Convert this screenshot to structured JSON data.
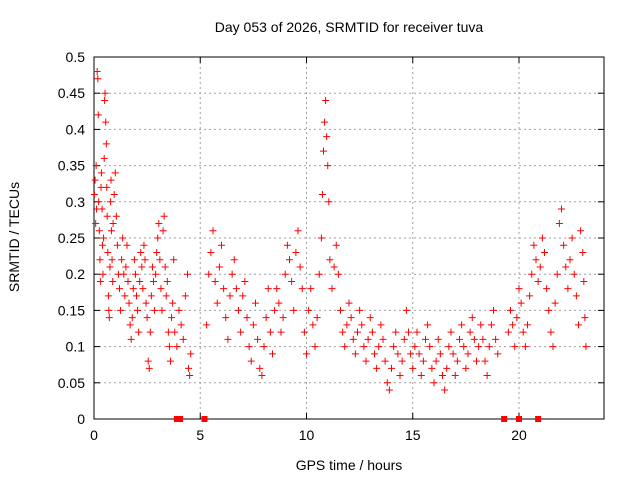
{
  "chart_data": {
    "type": "scatter",
    "title": "Day 053 of 2026, SRMTID for receiver tuva",
    "xlabel": "GPS time / hours",
    "ylabel": "SRMTID / TECUs",
    "xlim": [
      0,
      24
    ],
    "ylim": [
      0,
      0.5
    ],
    "xticks": [
      0,
      5,
      10,
      15,
      20
    ],
    "yticks": [
      0,
      0.05,
      0.1,
      0.15,
      0.2,
      0.25,
      0.3,
      0.35,
      0.4,
      0.45,
      0.5
    ],
    "grid": true,
    "marker": "+",
    "color": "#ff0000",
    "series": [
      {
        "points": [
          [
            0.02,
            0.31
          ],
          [
            0.05,
            0.33
          ],
          [
            0.08,
            0.27
          ],
          [
            0.1,
            0.35
          ],
          [
            0.12,
            0.29
          ],
          [
            0.15,
            0.48
          ],
          [
            0.18,
            0.47
          ],
          [
            0.2,
            0.42
          ],
          [
            0.22,
            0.3
          ],
          [
            0.25,
            0.26
          ],
          [
            0.28,
            0.22
          ],
          [
            0.3,
            0.19
          ],
          [
            0.33,
            0.32
          ],
          [
            0.35,
            0.34
          ],
          [
            0.38,
            0.29
          ],
          [
            0.4,
            0.24
          ],
          [
            0.42,
            0.2
          ],
          [
            0.45,
            0.25
          ],
          [
            0.48,
            0.36
          ],
          [
            0.5,
            0.44
          ],
          [
            0.52,
            0.45
          ],
          [
            0.55,
            0.41
          ],
          [
            0.58,
            0.38
          ],
          [
            0.6,
            0.32
          ],
          [
            0.62,
            0.28
          ],
          [
            0.65,
            0.23
          ],
          [
            0.68,
            0.17
          ],
          [
            0.7,
            0.15
          ],
          [
            0.72,
            0.14
          ],
          [
            0.75,
            0.21
          ],
          [
            0.78,
            0.3
          ],
          [
            0.8,
            0.33
          ],
          [
            0.82,
            0.26
          ],
          [
            0.85,
            0.22
          ],
          [
            0.88,
            0.19
          ],
          [
            0.9,
            0.27
          ],
          [
            0.95,
            0.31
          ],
          [
            1.0,
            0.34
          ],
          [
            1.05,
            0.28
          ],
          [
            1.1,
            0.24
          ],
          [
            1.15,
            0.2
          ],
          [
            1.2,
            0.18
          ],
          [
            1.25,
            0.15
          ],
          [
            1.3,
            0.22
          ],
          [
            1.35,
            0.25
          ],
          [
            1.4,
            0.2
          ],
          [
            1.45,
            0.17
          ],
          [
            1.5,
            0.21
          ],
          [
            1.55,
            0.24
          ],
          [
            1.6,
            0.19
          ],
          [
            1.65,
            0.16
          ],
          [
            1.7,
            0.13
          ],
          [
            1.75,
            0.11
          ],
          [
            1.8,
            0.14
          ],
          [
            1.85,
            0.18
          ],
          [
            1.9,
            0.22
          ],
          [
            1.95,
            0.2
          ],
          [
            2.0,
            0.17
          ],
          [
            2.05,
            0.15
          ],
          [
            2.1,
            0.12
          ],
          [
            2.15,
            0.19
          ],
          [
            2.2,
            0.23
          ],
          [
            2.25,
            0.21
          ],
          [
            2.3,
            0.18
          ],
          [
            2.35,
            0.24
          ],
          [
            2.4,
            0.22
          ],
          [
            2.45,
            0.16
          ],
          [
            2.5,
            0.14
          ],
          [
            2.55,
            0.08
          ],
          [
            2.6,
            0.07
          ],
          [
            2.65,
            0.12
          ],
          [
            2.7,
            0.17
          ],
          [
            2.75,
            0.21
          ],
          [
            2.8,
            0.19
          ],
          [
            2.85,
            0.15
          ],
          [
            2.9,
            0.2
          ],
          [
            2.95,
            0.23
          ],
          [
            3.0,
            0.25
          ],
          [
            3.05,
            0.27
          ],
          [
            3.1,
            0.22
          ],
          [
            3.15,
            0.18
          ],
          [
            3.2,
            0.15
          ],
          [
            3.25,
            0.26
          ],
          [
            3.3,
            0.28
          ],
          [
            3.35,
            0.21
          ],
          [
            3.4,
            0.17
          ],
          [
            3.45,
            0.19
          ],
          [
            3.5,
            0.12
          ],
          [
            3.55,
            0.1
          ],
          [
            3.6,
            0.08
          ],
          [
            3.65,
            0.14
          ],
          [
            3.7,
            0.16
          ],
          [
            3.75,
            0.22
          ],
          [
            3.8,
            0.12
          ],
          [
            3.9,
            0.1
          ],
          [
            4.0,
            0.15
          ],
          [
            4.1,
            0.13
          ],
          [
            4.2,
            0.11
          ],
          [
            4.3,
            0.17
          ],
          [
            4.4,
            0.2
          ],
          [
            4.45,
            0.07
          ],
          [
            4.5,
            0.06
          ],
          [
            4.55,
            0.09
          ],
          [
            5.3,
            0.13
          ],
          [
            5.4,
            0.2
          ],
          [
            5.5,
            0.23
          ],
          [
            5.6,
            0.26
          ],
          [
            5.7,
            0.19
          ],
          [
            5.8,
            0.16
          ],
          [
            5.9,
            0.21
          ],
          [
            6.0,
            0.24
          ],
          [
            6.1,
            0.18
          ],
          [
            6.2,
            0.14
          ],
          [
            6.3,
            0.11
          ],
          [
            6.4,
            0.17
          ],
          [
            6.5,
            0.2
          ],
          [
            6.6,
            0.22
          ],
          [
            6.7,
            0.18
          ],
          [
            6.8,
            0.15
          ],
          [
            6.9,
            0.12
          ],
          [
            7.0,
            0.17
          ],
          [
            7.1,
            0.19
          ],
          [
            7.2,
            0.14
          ],
          [
            7.3,
            0.1
          ],
          [
            7.4,
            0.08
          ],
          [
            7.5,
            0.13
          ],
          [
            7.6,
            0.16
          ],
          [
            7.7,
            0.11
          ],
          [
            7.8,
            0.07
          ],
          [
            7.9,
            0.06
          ],
          [
            8.0,
            0.1
          ],
          [
            8.1,
            0.14
          ],
          [
            8.2,
            0.18
          ],
          [
            8.3,
            0.12
          ],
          [
            8.4,
            0.09
          ],
          [
            8.5,
            0.15
          ],
          [
            8.6,
            0.18
          ],
          [
            8.7,
            0.16
          ],
          [
            8.8,
            0.12
          ],
          [
            8.9,
            0.14
          ],
          [
            9.0,
            0.2
          ],
          [
            9.1,
            0.24
          ],
          [
            9.2,
            0.22
          ],
          [
            9.3,
            0.19
          ],
          [
            9.4,
            0.15
          ],
          [
            9.5,
            0.23
          ],
          [
            9.6,
            0.26
          ],
          [
            9.7,
            0.21
          ],
          [
            9.8,
            0.18
          ],
          [
            9.9,
            0.12
          ],
          [
            10.0,
            0.09
          ],
          [
            10.1,
            0.15
          ],
          [
            10.2,
            0.18
          ],
          [
            10.3,
            0.13
          ],
          [
            10.4,
            0.1
          ],
          [
            10.5,
            0.14
          ],
          [
            10.6,
            0.2
          ],
          [
            10.7,
            0.25
          ],
          [
            10.75,
            0.31
          ],
          [
            10.8,
            0.37
          ],
          [
            10.85,
            0.41
          ],
          [
            10.9,
            0.44
          ],
          [
            10.95,
            0.39
          ],
          [
            11.0,
            0.35
          ],
          [
            11.05,
            0.3
          ],
          [
            11.1,
            0.22
          ],
          [
            11.2,
            0.18
          ],
          [
            11.3,
            0.21
          ],
          [
            11.4,
            0.24
          ],
          [
            11.5,
            0.2
          ],
          [
            11.6,
            0.15
          ],
          [
            11.7,
            0.12
          ],
          [
            11.8,
            0.1
          ],
          [
            11.9,
            0.13
          ],
          [
            12.0,
            0.16
          ],
          [
            12.1,
            0.14
          ],
          [
            12.2,
            0.11
          ],
          [
            12.3,
            0.09
          ],
          [
            12.4,
            0.12
          ],
          [
            12.5,
            0.15
          ],
          [
            12.6,
            0.13
          ],
          [
            12.7,
            0.1
          ],
          [
            12.8,
            0.08
          ],
          [
            12.9,
            0.11
          ],
          [
            13.0,
            0.14
          ],
          [
            13.1,
            0.12
          ],
          [
            13.2,
            0.09
          ],
          [
            13.3,
            0.07
          ],
          [
            13.4,
            0.1
          ],
          [
            13.5,
            0.13
          ],
          [
            13.6,
            0.11
          ],
          [
            13.7,
            0.08
          ],
          [
            13.8,
            0.05
          ],
          [
            13.9,
            0.04
          ],
          [
            14.0,
            0.07
          ],
          [
            14.1,
            0.1
          ],
          [
            14.2,
            0.12
          ],
          [
            14.3,
            0.09
          ],
          [
            14.4,
            0.06
          ],
          [
            14.5,
            0.08
          ],
          [
            14.6,
            0.11
          ],
          [
            14.7,
            0.15
          ],
          [
            14.8,
            0.12
          ],
          [
            14.9,
            0.09
          ],
          [
            15.0,
            0.07
          ],
          [
            15.1,
            0.1
          ],
          [
            15.2,
            0.12
          ],
          [
            15.3,
            0.09
          ],
          [
            15.4,
            0.06
          ],
          [
            15.5,
            0.08
          ],
          [
            15.6,
            0.11
          ],
          [
            15.7,
            0.13
          ],
          [
            15.8,
            0.1
          ],
          [
            15.9,
            0.07
          ],
          [
            16.0,
            0.05
          ],
          [
            16.1,
            0.08
          ],
          [
            16.2,
            0.11
          ],
          [
            16.3,
            0.09
          ],
          [
            16.4,
            0.06
          ],
          [
            16.5,
            0.04
          ],
          [
            16.6,
            0.07
          ],
          [
            16.7,
            0.1
          ],
          [
            16.8,
            0.12
          ],
          [
            16.9,
            0.09
          ],
          [
            17.0,
            0.06
          ],
          [
            17.1,
            0.08
          ],
          [
            17.2,
            0.11
          ],
          [
            17.3,
            0.13
          ],
          [
            17.4,
            0.1
          ],
          [
            17.5,
            0.07
          ],
          [
            17.6,
            0.09
          ],
          [
            17.7,
            0.12
          ],
          [
            17.8,
            0.14
          ],
          [
            17.9,
            0.11
          ],
          [
            18.0,
            0.08
          ],
          [
            18.1,
            0.1
          ],
          [
            18.2,
            0.13
          ],
          [
            18.3,
            0.11
          ],
          [
            18.4,
            0.08
          ],
          [
            18.5,
            0.06
          ],
          [
            18.6,
            0.1
          ],
          [
            18.7,
            0.13
          ],
          [
            18.8,
            0.15
          ],
          [
            18.9,
            0.11
          ],
          [
            19.0,
            0.09
          ],
          [
            19.5,
            0.12
          ],
          [
            19.6,
            0.15
          ],
          [
            19.7,
            0.13
          ],
          [
            19.8,
            0.1
          ],
          [
            19.9,
            0.14
          ],
          [
            20.0,
            0.18
          ],
          [
            20.1,
            0.16
          ],
          [
            20.2,
            0.12
          ],
          [
            20.3,
            0.1
          ],
          [
            20.4,
            0.13
          ],
          [
            20.5,
            0.17
          ],
          [
            20.6,
            0.2
          ],
          [
            20.7,
            0.24
          ],
          [
            20.8,
            0.22
          ],
          [
            20.9,
            0.19
          ],
          [
            21.0,
            0.21
          ],
          [
            21.1,
            0.25
          ],
          [
            21.2,
            0.23
          ],
          [
            21.3,
            0.18
          ],
          [
            21.4,
            0.15
          ],
          [
            21.5,
            0.12
          ],
          [
            21.6,
            0.1
          ],
          [
            21.7,
            0.16
          ],
          [
            21.8,
            0.2
          ],
          [
            21.9,
            0.27
          ],
          [
            22.0,
            0.29
          ],
          [
            22.1,
            0.24
          ],
          [
            22.2,
            0.21
          ],
          [
            22.3,
            0.18
          ],
          [
            22.4,
            0.22
          ],
          [
            22.5,
            0.25
          ],
          [
            22.6,
            0.2
          ],
          [
            22.7,
            0.17
          ],
          [
            22.8,
            0.13
          ],
          [
            22.9,
            0.26
          ],
          [
            23.0,
            0.23
          ],
          [
            23.05,
            0.19
          ],
          [
            23.1,
            0.14
          ],
          [
            23.15,
            0.1
          ]
        ]
      }
    ],
    "baseline_markers": [
      3.9,
      4.05,
      5.2,
      19.3,
      20.0,
      20.9
    ]
  }
}
